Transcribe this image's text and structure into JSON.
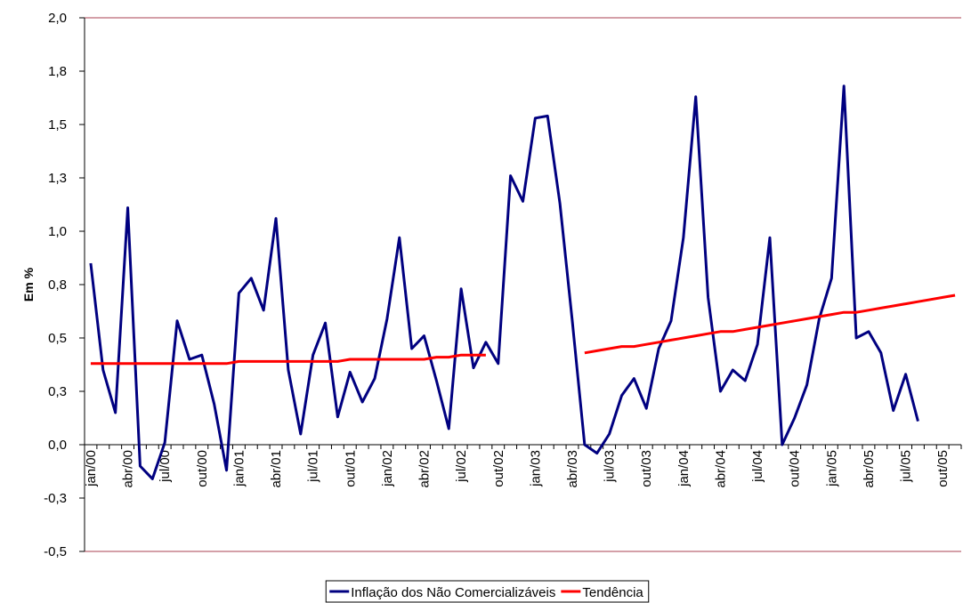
{
  "chart_data": {
    "type": "line",
    "y_label": "Em %",
    "categories": [
      "jan/00",
      null,
      null,
      "abr/00",
      null,
      null,
      "jul/00",
      null,
      null,
      "out/00",
      null,
      null,
      "jan/01",
      null,
      null,
      "abr/01",
      null,
      null,
      "jul/01",
      null,
      null,
      "out/01",
      null,
      null,
      "jan/02",
      null,
      null,
      "abr/02",
      null,
      null,
      "jul/02",
      null,
      null,
      "out/02",
      null,
      null,
      "jan/03",
      null,
      null,
      "abr/03",
      null,
      null,
      "jul/03",
      null,
      null,
      "out/03",
      null,
      null,
      "jan/04",
      null,
      null,
      "abr/04",
      null,
      null,
      "jul/04",
      null,
      null,
      "out/04",
      null,
      null,
      "jan/05",
      null,
      null,
      "abr/05",
      null,
      null,
      "jul/05",
      null,
      null,
      "out/05",
      null
    ],
    "series": [
      {
        "name": "Inflação dos Não Comercializáveis",
        "color": "#000080",
        "values": [
          0.85,
          0.35,
          0.15,
          1.11,
          -0.1,
          -0.16,
          0.01,
          0.58,
          0.4,
          0.42,
          0.19,
          -0.12,
          0.71,
          0.78,
          0.63,
          1.06,
          0.35,
          0.05,
          0.42,
          0.57,
          0.13,
          0.34,
          0.2,
          0.31,
          0.59,
          0.97,
          0.45,
          0.51,
          0.3,
          0.075,
          0.73,
          0.36,
          0.48,
          0.38,
          1.26,
          1.14,
          1.53,
          1.54,
          1.13,
          0.58,
          0.0,
          -0.04,
          0.05,
          0.23,
          0.31,
          0.17,
          0.45,
          0.58,
          0.97,
          1.63,
          0.69,
          0.25,
          0.35,
          0.3,
          0.47,
          0.97,
          0.0,
          0.125,
          0.28,
          0.59,
          0.78,
          1.68,
          0.5,
          0.53,
          0.43,
          0.16,
          0.33,
          0.11,
          null,
          null,
          null
        ]
      },
      {
        "name": "Tendência",
        "color": "#ff0000",
        "values": [
          0.38,
          0.38,
          0.38,
          0.38,
          0.38,
          0.38,
          0.38,
          0.38,
          0.38,
          0.38,
          0.38,
          0.38,
          0.39,
          0.39,
          0.39,
          0.39,
          0.39,
          0.39,
          0.39,
          0.39,
          0.39,
          0.4,
          0.4,
          0.4,
          0.4,
          0.4,
          0.4,
          0.4,
          0.41,
          0.41,
          0.42,
          0.42,
          0.42,
          null,
          null,
          null,
          null,
          null,
          null,
          null,
          0.43,
          0.44,
          0.45,
          0.46,
          0.46,
          0.47,
          0.48,
          0.49,
          0.5,
          0.51,
          0.52,
          0.53,
          0.53,
          0.54,
          0.55,
          0.56,
          0.57,
          0.58,
          0.59,
          0.6,
          0.61,
          0.62,
          0.62,
          0.63,
          0.64,
          0.65,
          0.66,
          0.67,
          0.68,
          0.69,
          0.7
        ]
      }
    ],
    "ylim": [
      -0.5,
      2.0
    ],
    "yticks": [
      {
        "value": -0.5,
        "label": "-0,5"
      },
      {
        "value": -0.25,
        "label": "-0,3"
      },
      {
        "value": 0,
        "label": "0,0"
      },
      {
        "value": 0.25,
        "label": "0,3"
      },
      {
        "value": 0.5,
        "label": "0,5"
      },
      {
        "value": 0.75,
        "label": "0,8"
      },
      {
        "value": 1.0,
        "label": "1,0"
      },
      {
        "value": 1.25,
        "label": "1,3"
      },
      {
        "value": 1.5,
        "label": "1,5"
      },
      {
        "value": 1.75,
        "label": "1,8"
      },
      {
        "value": 2.0,
        "label": "2,0"
      }
    ],
    "legend": "bottom"
  }
}
